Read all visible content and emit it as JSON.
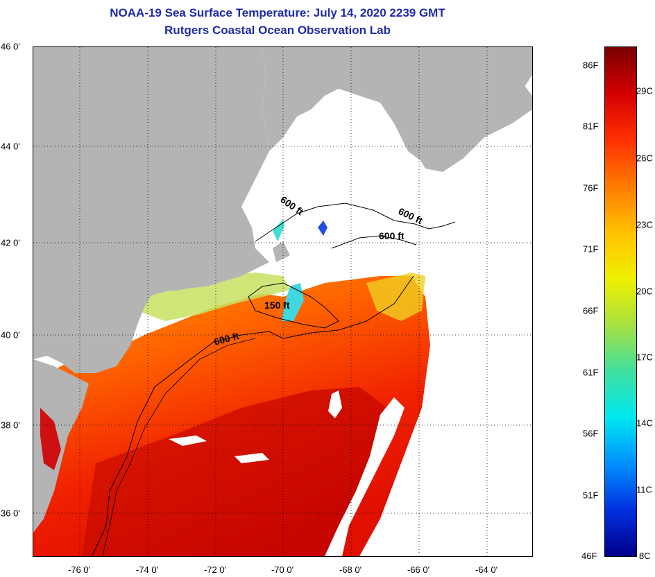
{
  "header": {
    "title": "NOAA-19 Sea Surface Temperature:  July 14, 2020 2239 GMT",
    "subtitle": "Rutgers Coastal Ocean Observation Lab"
  },
  "map": {
    "lat_labels": [
      "46 0'",
      "44 0'",
      "42 0'",
      "40 0'",
      "38 0'",
      "36 0'"
    ],
    "lon_labels": [
      "-76 0'",
      "-74 0'",
      "-72 0'",
      "-70 0'",
      "-68 0'",
      "-66 0'",
      "-64 0'"
    ],
    "isobath_labels": [
      {
        "id": "isobath-label-600-gulf-west",
        "text": "600 ft"
      },
      {
        "id": "isobath-label-600-gulf-east",
        "text": "600 ft"
      },
      {
        "id": "isobath-label-600-georges",
        "text": "600 ft"
      },
      {
        "id": "isobath-label-150-georges",
        "text": "150 ft"
      },
      {
        "id": "isobath-label-600-shelf",
        "text": "600 ft"
      }
    ],
    "colors": {
      "land": "#b4b4b4",
      "cloud": "#ffffff",
      "grid": "#000000"
    }
  },
  "colorbar": {
    "fahrenheit": [
      "86F",
      "81F",
      "76F",
      "71F",
      "66F",
      "61F",
      "56F",
      "51F"
    ],
    "fahrenheit_min": "46F",
    "celsius": [
      "29C",
      "26C",
      "23C",
      "20C",
      "17C",
      "14C",
      "11C"
    ],
    "celsius_min": "8C",
    "gradient_colors": [
      "#7a0000",
      "#d40000",
      "#ff3000",
      "#ff7a00",
      "#ffc000",
      "#f0f000",
      "#a8e040",
      "#40e0a0",
      "#00e8f0",
      "#0090ff",
      "#0030e0",
      "#00008a"
    ]
  }
}
